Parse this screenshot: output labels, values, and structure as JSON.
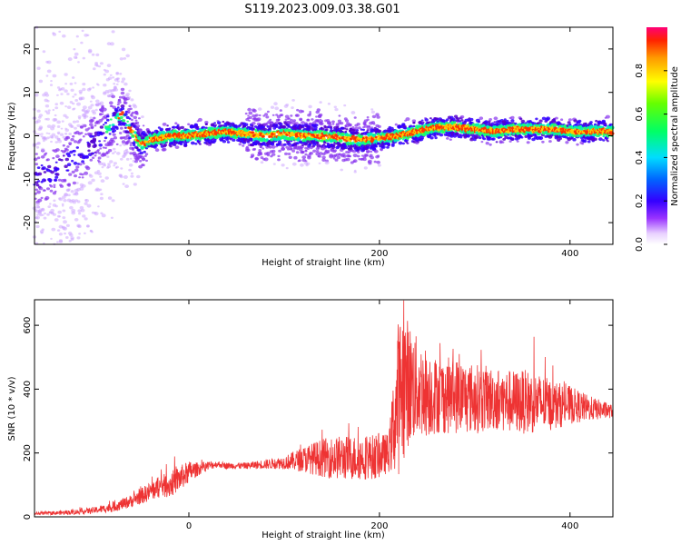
{
  "page": {
    "title": "S119.2023.009.03.38.G01"
  },
  "chart_data": [
    {
      "type": "heatmap",
      "xlabel": "Height of straight line (km)",
      "ylabel": "Frequency (Hz)",
      "xlim": [
        -162,
        445
      ],
      "ylim": [
        -25,
        25
      ],
      "xticks": [
        0,
        200,
        400
      ],
      "yticks": [
        -20,
        -10,
        0,
        10,
        20
      ],
      "colorbar": {
        "label": "Normalized spectral amplitude",
        "range": [
          0,
          1
        ],
        "ticks": [
          "0.0",
          "0.2",
          "0.4",
          "0.6",
          "0.8"
        ]
      },
      "ridge_frequency": {
        "x": [
          -162,
          -140,
          -120,
          -100,
          -90,
          -80,
          -70,
          -60,
          -50,
          -40,
          -20,
          0,
          20,
          40,
          60,
          80,
          100,
          120,
          140,
          160,
          180,
          200,
          220,
          240,
          260,
          280,
          300,
          320,
          340,
          360,
          380,
          400,
          420,
          445
        ],
        "y": [
          -10,
          -8,
          -5,
          -2,
          1,
          3,
          5,
          1,
          -2,
          -1,
          0,
          0,
          0.5,
          1,
          0.5,
          0,
          0.5,
          0,
          0,
          -0.5,
          -1,
          -0.5,
          0,
          1,
          2,
          2,
          1.5,
          1,
          1.5,
          1.5,
          1.5,
          1,
          1,
          1
        ]
      }
    },
    {
      "type": "line",
      "xlabel": "Height of straight line (km)",
      "ylabel": "SNR (10 * v/v)",
      "xlim": [
        -162,
        445
      ],
      "ylim": [
        0,
        680
      ],
      "xticks": [
        0,
        200,
        400
      ],
      "yticks": [
        0,
        200,
        400,
        600
      ],
      "color": "#ee3333",
      "envelope": {
        "x": [
          -162,
          -140,
          -120,
          -100,
          -80,
          -60,
          -50,
          -40,
          -30,
          -20,
          -10,
          0,
          10,
          20,
          30,
          40,
          60,
          80,
          100,
          120,
          140,
          160,
          180,
          200,
          210,
          220,
          225,
          230,
          240,
          260,
          280,
          300,
          320,
          340,
          360,
          380,
          400,
          420,
          445
        ],
        "mean": [
          10,
          12,
          15,
          20,
          30,
          50,
          65,
          80,
          95,
          100,
          120,
          140,
          150,
          160,
          165,
          160,
          160,
          165,
          170,
          180,
          185,
          185,
          185,
          190,
          200,
          380,
          420,
          420,
          400,
          380,
          380,
          370,
          370,
          360,
          360,
          350,
          350,
          340,
          330
        ],
        "spread": [
          5,
          6,
          8,
          10,
          15,
          20,
          25,
          30,
          35,
          40,
          40,
          35,
          20,
          15,
          10,
          10,
          10,
          15,
          20,
          40,
          60,
          70,
          70,
          70,
          60,
          250,
          250,
          200,
          160,
          120,
          120,
          110,
          100,
          100,
          100,
          80,
          60,
          40,
          20
        ]
      }
    }
  ]
}
